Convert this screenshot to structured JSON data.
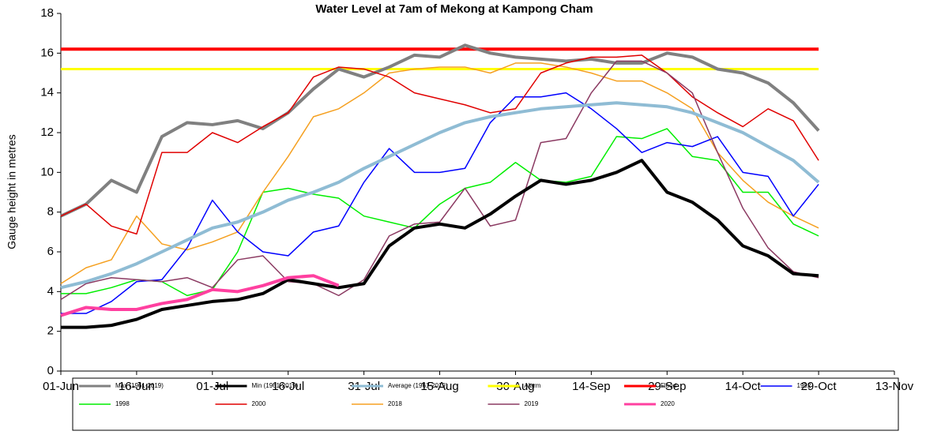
{
  "chart_data": {
    "type": "line",
    "title": "Water Level at 7am of Mekong at Kampong Cham",
    "y_label": "Gauge height in metres",
    "x": [
      0,
      5,
      10,
      15,
      20,
      25,
      30,
      35,
      40,
      45,
      50,
      55,
      60,
      65,
      70,
      75,
      80,
      85,
      90,
      95,
      100,
      105,
      110,
      115,
      120,
      125,
      130,
      135,
      140,
      145,
      150
    ],
    "xlim": [
      0,
      165
    ],
    "xticks": [
      {
        "value": 0,
        "label": "01-Jun"
      },
      {
        "value": 15,
        "label": "16-Jun"
      },
      {
        "value": 30,
        "label": "01-Jul"
      },
      {
        "value": 45,
        "label": "16-Jul"
      },
      {
        "value": 60,
        "label": "31-Jul"
      },
      {
        "value": 75,
        "label": "15-Aug"
      },
      {
        "value": 90,
        "label": "30-Aug"
      },
      {
        "value": 105,
        "label": "14-Sep"
      },
      {
        "value": 120,
        "label": "29-Sep"
      },
      {
        "value": 135,
        "label": "14-Oct"
      },
      {
        "value": 150,
        "label": "29-Oct"
      },
      {
        "value": 165,
        "label": "13-Nov"
      }
    ],
    "ylim": [
      0,
      18
    ],
    "yticks": [
      0,
      2,
      4,
      6,
      8,
      10,
      12,
      14,
      16,
      18
    ],
    "series": [
      {
        "name": "Max (1961-2019)",
        "color": "#808080",
        "width": 4,
        "values": [
          7.8,
          8.4,
          9.6,
          9.0,
          11.8,
          12.5,
          12.4,
          12.6,
          12.2,
          13.0,
          14.2,
          15.2,
          14.8,
          15.3,
          15.9,
          15.8,
          16.4,
          16.0,
          15.8,
          15.7,
          15.6,
          15.7,
          15.5,
          15.5,
          16.0,
          15.8,
          15.2,
          15.0,
          14.5,
          13.5,
          12.1
        ]
      },
      {
        "name": "Min (1961-2019)",
        "color": "#000000",
        "width": 4,
        "values": [
          2.2,
          2.2,
          2.3,
          2.6,
          3.1,
          3.3,
          3.5,
          3.6,
          3.9,
          4.6,
          4.4,
          4.2,
          4.4,
          6.3,
          7.2,
          7.4,
          7.2,
          7.9,
          8.8,
          9.6,
          9.4,
          9.6,
          10.0,
          10.6,
          9.0,
          8.5,
          7.6,
          6.3,
          5.8,
          4.9,
          4.8
        ]
      },
      {
        "name": "Average (1961-2019)",
        "color": "#8fbcd4",
        "width": 4,
        "values": [
          4.2,
          4.5,
          4.9,
          5.4,
          6.0,
          6.6,
          7.2,
          7.5,
          8.0,
          8.6,
          9.0,
          9.5,
          10.2,
          10.8,
          11.4,
          12.0,
          12.5,
          12.8,
          13.0,
          13.2,
          13.3,
          13.4,
          13.5,
          13.4,
          13.3,
          13.0,
          12.5,
          12.0,
          11.3,
          10.6,
          9.5
        ]
      },
      {
        "name": "Alarm",
        "color": "#ffff00",
        "width": 3,
        "values": [
          15.2,
          15.2,
          15.2,
          15.2,
          15.2,
          15.2,
          15.2,
          15.2,
          15.2,
          15.2,
          15.2,
          15.2,
          15.2,
          15.2,
          15.2,
          15.2,
          15.2,
          15.2,
          15.2,
          15.2,
          15.2,
          15.2,
          15.2,
          15.2,
          15.2,
          15.2,
          15.2,
          15.2,
          15.2,
          15.2,
          15.2
        ]
      },
      {
        "name": "Flood",
        "color": "#ff0000",
        "width": 4,
        "values": [
          16.2,
          16.2,
          16.2,
          16.2,
          16.2,
          16.2,
          16.2,
          16.2,
          16.2,
          16.2,
          16.2,
          16.2,
          16.2,
          16.2,
          16.2,
          16.2,
          16.2,
          16.2,
          16.2,
          16.2,
          16.2,
          16.2,
          16.2,
          16.2,
          16.2,
          16.2,
          16.2,
          16.2,
          16.2,
          16.2,
          16.2
        ]
      },
      {
        "name": "1992",
        "color": "#0000ff",
        "width": 1.5,
        "values": [
          2.9,
          2.9,
          3.5,
          4.5,
          4.6,
          6.2,
          8.6,
          7.0,
          6.0,
          5.8,
          7.0,
          7.3,
          9.5,
          11.2,
          10.0,
          10.0,
          10.2,
          12.5,
          13.8,
          13.8,
          14.0,
          13.2,
          12.2,
          11.0,
          11.5,
          11.3,
          11.8,
          10.0,
          9.8,
          7.8,
          9.4
        ]
      },
      {
        "name": "1998",
        "color": "#00ee00",
        "width": 1.5,
        "values": [
          3.9,
          3.9,
          4.2,
          4.6,
          4.5,
          3.8,
          4.1,
          6.0,
          9.0,
          9.2,
          8.9,
          8.7,
          7.8,
          7.5,
          7.2,
          8.4,
          9.2,
          9.5,
          10.5,
          9.6,
          9.5,
          9.8,
          11.8,
          11.7,
          12.2,
          10.8,
          10.6,
          9.0,
          9.0,
          7.4,
          6.8
        ]
      },
      {
        "name": "2000",
        "color": "#e00000",
        "width": 1.5,
        "values": [
          7.8,
          8.4,
          7.3,
          6.9,
          11.0,
          11.0,
          12.0,
          11.5,
          12.3,
          13.0,
          14.8,
          15.3,
          15.2,
          14.8,
          14.0,
          13.7,
          13.4,
          13.0,
          13.2,
          15.0,
          15.5,
          15.8,
          15.8,
          15.9,
          15.0,
          13.8,
          13.0,
          12.3,
          13.2,
          12.6,
          10.6
        ]
      },
      {
        "name": "2018",
        "color": "#f5a020",
        "width": 1.5,
        "values": [
          4.4,
          5.2,
          5.6,
          7.8,
          6.4,
          6.1,
          6.5,
          7.0,
          9.0,
          10.8,
          12.8,
          13.2,
          14.0,
          15.0,
          15.2,
          15.3,
          15.3,
          15.0,
          15.5,
          15.5,
          15.3,
          15.0,
          14.6,
          14.6,
          14.0,
          13.2,
          11.0,
          9.6,
          8.5,
          7.8,
          7.2
        ]
      },
      {
        "name": "2019",
        "color": "#8b3a62",
        "width": 1.5,
        "values": [
          3.6,
          4.4,
          4.7,
          4.6,
          4.5,
          4.7,
          4.2,
          5.6,
          5.8,
          4.5,
          4.4,
          3.8,
          4.6,
          6.8,
          7.4,
          7.5,
          9.2,
          7.3,
          7.6,
          11.5,
          11.7,
          14.0,
          15.6,
          15.6,
          15.0,
          14.0,
          11.0,
          8.2,
          6.2,
          5.0,
          4.7
        ]
      },
      {
        "name": "2020",
        "color": "#ff40a0",
        "width": 4,
        "values": [
          2.8,
          3.2,
          3.1,
          3.1,
          3.4,
          3.6,
          4.1,
          4.0,
          4.3,
          4.7,
          4.8,
          4.3,
          null,
          null,
          null,
          null,
          null,
          null,
          null,
          null,
          null,
          null,
          null,
          null,
          null,
          null,
          null,
          null,
          null,
          null,
          null
        ]
      }
    ]
  }
}
